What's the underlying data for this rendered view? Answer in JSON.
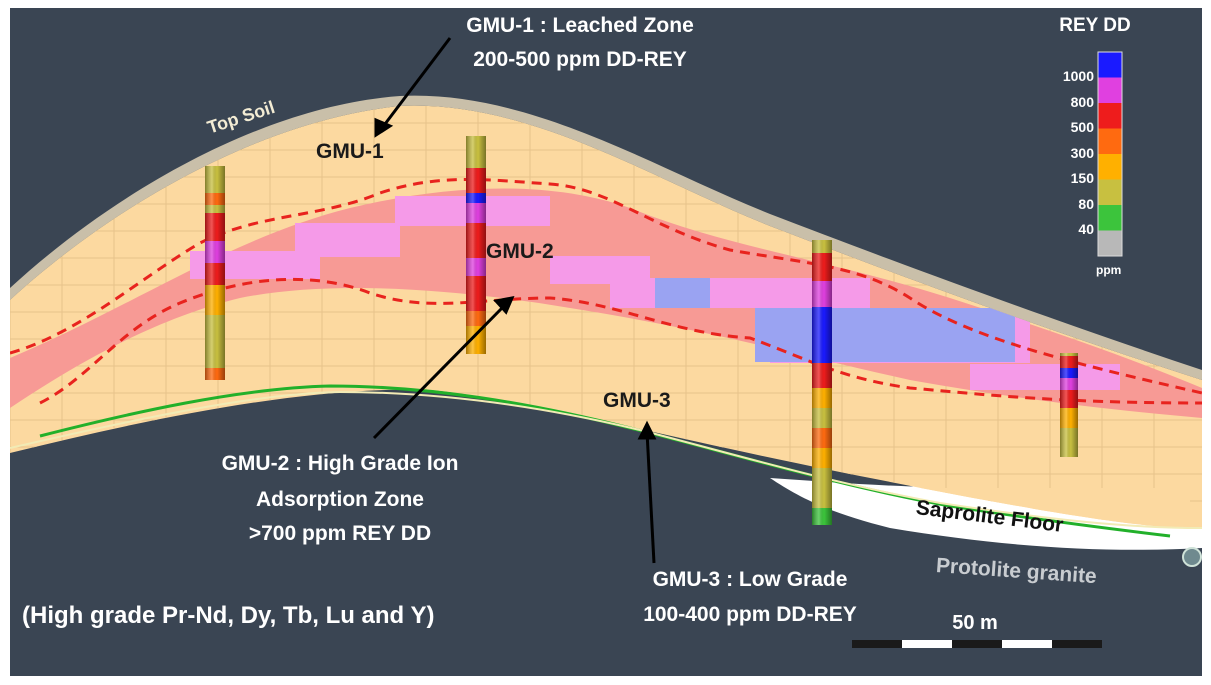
{
  "annotations": {
    "gmu1_title": "GMU-1 : Leached Zone",
    "gmu1_range": "200-500 ppm DD-REY",
    "gmu2_title": "GMU-2 : High Grade Ion",
    "gmu2_subtitle": "Adsorption Zone",
    "gmu2_range": ">700 ppm REY DD",
    "gmu3_title": "GMU-3 : Low Grade",
    "gmu3_range": "100-400 ppm DD-REY",
    "high_grade_note": "(High grade Pr-Nd, Dy, Tb, Lu and Y)"
  },
  "zone_labels": {
    "gmu1": "GMU-1",
    "gmu2": "GMU-2",
    "gmu3": "GMU-3"
  },
  "layer_labels": {
    "top_soil": "Top Soil",
    "saprolite_floor": "Saprolite Floor",
    "protolite": "Protolite granite"
  },
  "scale_bar": {
    "label": "50 m"
  },
  "legend": {
    "title": "REY DD",
    "unit": "ppm",
    "entries": [
      {
        "label": "1000",
        "color": "#1a1aff"
      },
      {
        "label": "800",
        "color": "#e040e0"
      },
      {
        "label": "500",
        "color": "#ee1c1c"
      },
      {
        "label": "300",
        "color": "#ff6a10"
      },
      {
        "label": "150",
        "color": "#ffb000"
      },
      {
        "label": "80",
        "color": "#c8c040"
      },
      {
        "label": "40",
        "color": "#3cc43c"
      },
      {
        "label": "",
        "color": "#b8b8b8"
      }
    ]
  },
  "colors": {
    "background": "#3a4553",
    "low_grade_block": "#fcd9a0",
    "mid_grade_block": "#f79a95",
    "high_grade_block": "#f59ae8",
    "very_high_block": "#9aa3f2",
    "boundary_dashed": "#e8231e",
    "saprolite_floor_line": "#22b02a",
    "top_soil": "#c9bfa9"
  }
}
